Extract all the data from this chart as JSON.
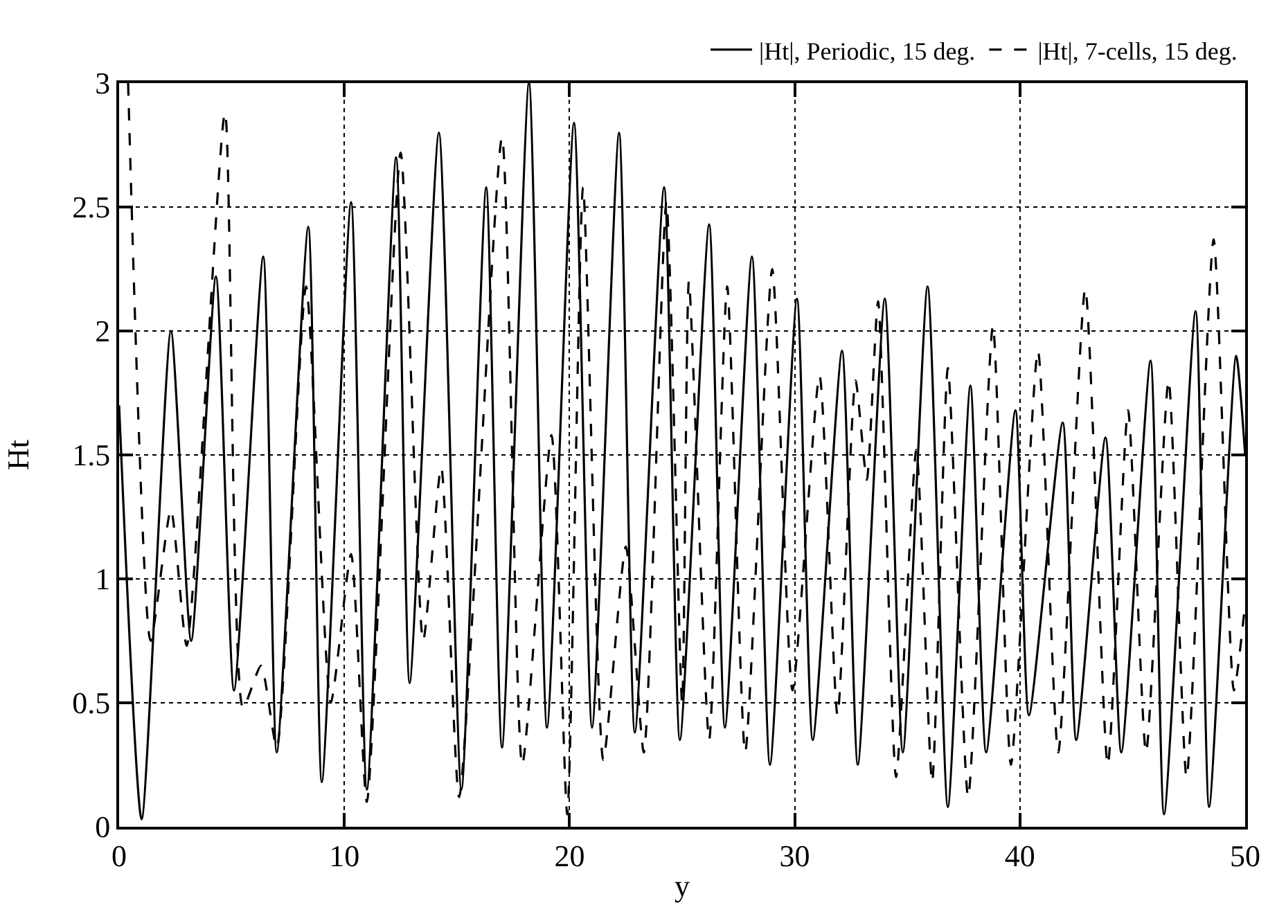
{
  "chart_data": {
    "type": "line",
    "xlabel": "y",
    "ylabel": "Ht",
    "xlim": [
      0,
      50
    ],
    "xticks": [
      0,
      10,
      20,
      30,
      40,
      50
    ],
    "ylim": [
      0,
      3
    ],
    "yticks": [
      0,
      0.5,
      1,
      1.5,
      2,
      2.5,
      3
    ],
    "grid": true,
    "legend": "top right",
    "marker": "none",
    "series": [
      {
        "name": "|Ht|, Periodic, 15 deg.",
        "color": "#000000",
        "line_style": "solid",
        "x": [
          0,
          1.0,
          2.3,
          3.2,
          4.3,
          5.1,
          6.4,
          7.0,
          8.4,
          9.0,
          10.3,
          11.0,
          12.3,
          12.9,
          14.2,
          15.2,
          16.3,
          17.0,
          18.2,
          19.0,
          20.2,
          21.0,
          22.2,
          22.9,
          24.2,
          24.9,
          26.2,
          26.9,
          28.1,
          28.9,
          30.1,
          30.8,
          32.1,
          32.8,
          34.0,
          34.8,
          35.9,
          36.8,
          37.8,
          38.5,
          39.8,
          40.4,
          41.9,
          42.5,
          43.8,
          44.5,
          45.8,
          46.4,
          47.8,
          48.4,
          49.6,
          50
        ],
        "values": [
          1.7,
          0.03,
          2.0,
          0.75,
          2.22,
          0.55,
          2.3,
          0.3,
          2.42,
          0.18,
          2.52,
          0.15,
          2.7,
          0.58,
          2.8,
          0.15,
          2.58,
          0.32,
          3.0,
          0.4,
          2.84,
          0.4,
          2.8,
          0.38,
          2.58,
          0.35,
          2.43,
          0.4,
          2.3,
          0.25,
          2.13,
          0.35,
          1.92,
          0.25,
          2.13,
          0.3,
          2.18,
          0.08,
          1.78,
          0.3,
          1.68,
          0.45,
          1.63,
          0.35,
          1.57,
          0.3,
          1.88,
          0.05,
          2.08,
          0.08,
          1.9,
          1.5
        ]
      },
      {
        "name": "|Ht|, 7-cells, 15 deg.",
        "color": "#000000",
        "line_style": "dashed",
        "x": [
          0.4,
          1.4,
          2.3,
          3.0,
          4.7,
          5.5,
          6.3,
          7.0,
          8.3,
          9.4,
          10.3,
          11.0,
          12.5,
          13.5,
          14.3,
          15.1,
          17.0,
          17.9,
          19.2,
          19.9,
          20.6,
          21.5,
          22.5,
          23.3,
          24.3,
          25.0,
          25.3,
          26.2,
          27.0,
          27.8,
          29.0,
          29.9,
          31.1,
          31.9,
          32.7,
          33.2,
          33.7,
          34.5,
          35.4,
          36.1,
          36.8,
          37.7,
          38.8,
          39.6,
          40.8,
          41.7,
          42.9,
          43.9,
          44.8,
          45.6,
          46.6,
          47.4,
          48.6,
          49.5,
          50
        ],
        "values": [
          3.0,
          0.75,
          1.28,
          0.73,
          2.88,
          0.48,
          0.65,
          0.32,
          2.18,
          0.5,
          1.1,
          0.1,
          2.72,
          0.75,
          1.45,
          0.12,
          2.78,
          0.25,
          1.58,
          0.05,
          2.58,
          0.27,
          1.13,
          0.3,
          2.52,
          0.5,
          2.2,
          0.35,
          2.18,
          0.3,
          2.25,
          0.55,
          1.82,
          0.45,
          1.8,
          1.4,
          2.12,
          0.2,
          1.52,
          0.18,
          1.85,
          0.12,
          2.02,
          0.25,
          1.92,
          0.3,
          2.17,
          0.25,
          1.68,
          0.3,
          1.8,
          0.2,
          2.37,
          0.55,
          0.9
        ]
      }
    ]
  }
}
